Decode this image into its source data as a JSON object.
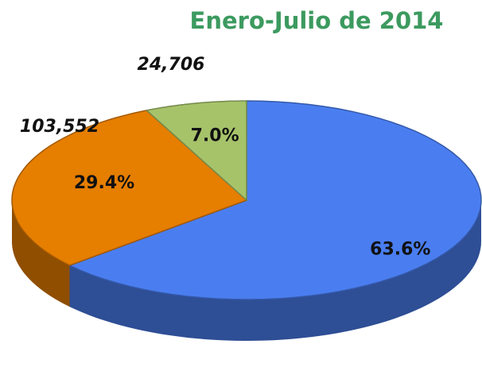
{
  "chart_data": {
    "type": "pie",
    "title": "Enero-Julio de 2014",
    "values": [
      63.6,
      29.4,
      7.0
    ],
    "value_labels": [
      "63.6%",
      "29.4%",
      "7.0%"
    ],
    "colors": [
      "#4a7ef0",
      "#e67e00",
      "#a6c36a"
    ],
    "count_labels": [
      null,
      "103,552",
      "24,706"
    ]
  }
}
